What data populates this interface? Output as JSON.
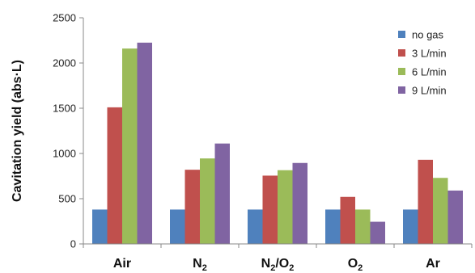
{
  "chart_data": {
    "type": "bar",
    "ylabel": "Cavitation yield (abs·L)",
    "xlabel": "",
    "ylim": [
      0,
      2500
    ],
    "yticks": [
      0,
      500,
      1000,
      1500,
      2000,
      2500
    ],
    "grid": false,
    "legend_position": "top-right",
    "categories": [
      {
        "main": "Air",
        "parts": [
          {
            "text": "Air",
            "sub": false
          }
        ]
      },
      {
        "main": "N2",
        "parts": [
          {
            "text": "N",
            "sub": false
          },
          {
            "text": "2",
            "sub": true
          }
        ]
      },
      {
        "main": "N2/O2",
        "parts": [
          {
            "text": "N",
            "sub": false
          },
          {
            "text": "2",
            "sub": true
          },
          {
            "text": "/O",
            "sub": false
          },
          {
            "text": "2",
            "sub": true
          }
        ]
      },
      {
        "main": "O2",
        "parts": [
          {
            "text": "O",
            "sub": false
          },
          {
            "text": "2",
            "sub": true
          }
        ]
      },
      {
        "main": "Ar",
        "parts": [
          {
            "text": "Ar",
            "sub": false
          }
        ]
      }
    ],
    "series": [
      {
        "name": "no gas",
        "color": "#4F81BD",
        "values": [
          380,
          380,
          380,
          380,
          380
        ]
      },
      {
        "name": "3 L/min",
        "color": "#C0504D",
        "values": [
          1510,
          820,
          755,
          520,
          930
        ]
      },
      {
        "name": "6 L/min",
        "color": "#9BBB59",
        "values": [
          2160,
          945,
          815,
          380,
          730
        ]
      },
      {
        "name": "9 L/min",
        "color": "#8064A2",
        "values": [
          2225,
          1110,
          895,
          245,
          590
        ]
      }
    ]
  }
}
